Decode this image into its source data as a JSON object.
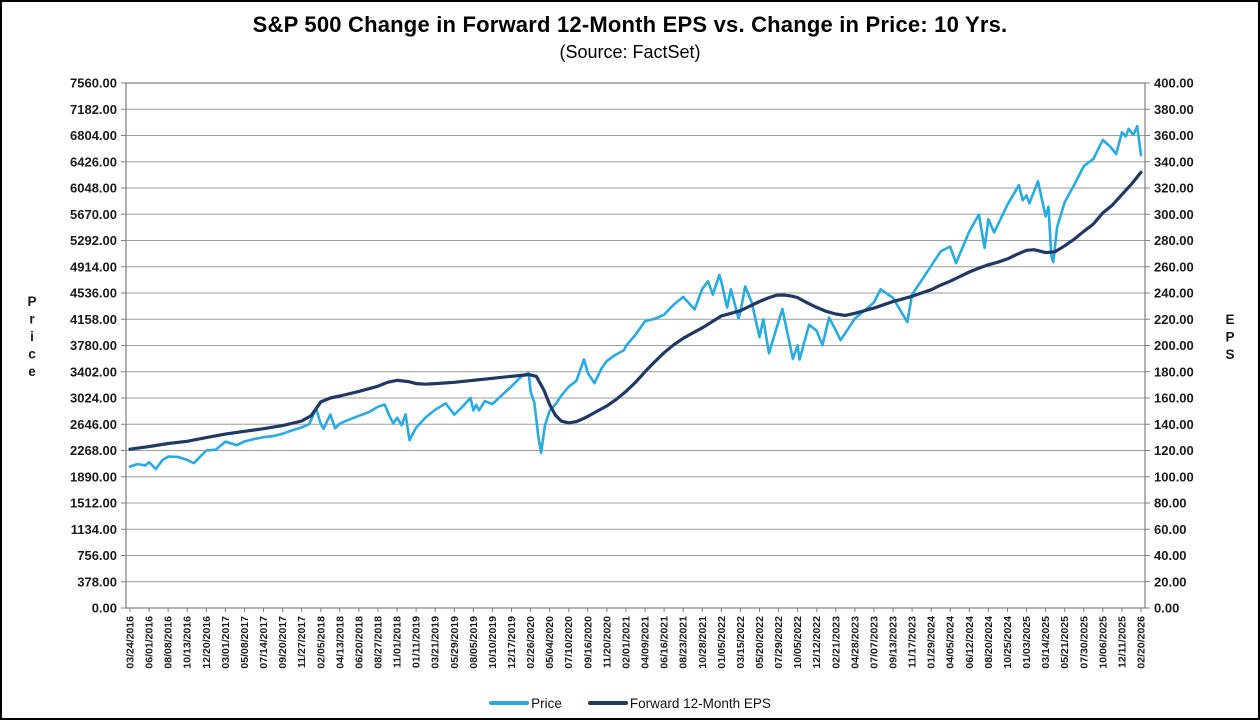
{
  "title": "S&P 500 Change in Forward 12-Month EPS vs. Change in Price: 10 Yrs.",
  "subtitle": "(Source: FactSet)",
  "legend": {
    "price_label": "Price",
    "eps_label": "Forward 12-Month EPS"
  },
  "colors": {
    "price": "#29ABE2",
    "eps": "#1F3864",
    "gridline": "#9E9E9E",
    "plot_border": "#808080",
    "axis_text": "#1A1A1A"
  },
  "chart_data": {
    "type": "line",
    "title": "S&P 500 Change in Forward 12-Month EPS vs. Change in Price: 10 Yrs.",
    "subtitle": "(Source: FactSet)",
    "grid": "horizontal-only",
    "legend_position": "bottom-center",
    "left_axis": {
      "title": "Price",
      "min": 0,
      "max": 7560,
      "tick_step": 378,
      "tick_labels": [
        "7560.00",
        "7182.00",
        "6804.00",
        "6426.00",
        "6048.00",
        "5670.00",
        "5292.00",
        "4914.00",
        "4536.00",
        "4158.00",
        "3780.00",
        "3402.00",
        "3024.00",
        "2646.00",
        "2268.00",
        "1890.00",
        "1512.00",
        "1134.00",
        "756.00",
        "378.00",
        "0.00"
      ]
    },
    "right_axis": {
      "title": "EPS",
      "min": 0,
      "max": 400,
      "tick_step": 20,
      "tick_labels": [
        "400.00",
        "380.00",
        "360.00",
        "340.00",
        "320.00",
        "300.00",
        "280.00",
        "260.00",
        "240.00",
        "220.00",
        "200.00",
        "180.00",
        "160.00",
        "140.00",
        "120.00",
        "100.00",
        "80.00",
        "60.00",
        "40.00",
        "20.00",
        "0.00"
      ]
    },
    "x_tick_labels": [
      "03/24/2016",
      "06/01/2016",
      "08/08/2016",
      "10/13/2016",
      "12/20/2016",
      "03/01/2017",
      "05/08/2017",
      "07/14/2017",
      "09/20/2017",
      "11/27/2017",
      "02/05/2018",
      "04/13/2018",
      "06/20/2018",
      "08/27/2018",
      "11/01/2018",
      "01/11/2019",
      "03/21/2019",
      "05/29/2019",
      "08/05/2019",
      "10/10/2019",
      "12/17/2019",
      "02/26/2020",
      "05/04/2020",
      "07/10/2020",
      "09/16/2020",
      "11/20/2020",
      "02/01/2021",
      "04/09/2021",
      "06/16/2021",
      "08/23/2021",
      "10/28/2021",
      "01/05/2022",
      "03/15/2022",
      "05/20/2022",
      "07/29/2022",
      "10/05/2022",
      "12/12/2022",
      "02/21/2023",
      "04/28/2023",
      "07/07/2023",
      "09/13/2023",
      "11/17/2023",
      "01/29/2024",
      "04/05/2024",
      "06/12/2024",
      "08/20/2024",
      "10/25/2024",
      "01/03/2025",
      "03/14/2025",
      "05/21/2025",
      "07/30/2025",
      "10/06/2025",
      "12/11/2025",
      "02/20/2026"
    ],
    "series": [
      {
        "name": "Price",
        "axis": "left",
        "color": "#29ABE2",
        "points": [
          [
            0,
            2036
          ],
          [
            0.4,
            2073
          ],
          [
            0.8,
            2052
          ],
          [
            1,
            2099
          ],
          [
            1.35,
            2001
          ],
          [
            1.7,
            2129
          ],
          [
            2,
            2181
          ],
          [
            2.5,
            2176
          ],
          [
            3,
            2133
          ],
          [
            3.35,
            2085
          ],
          [
            4,
            2270
          ],
          [
            4.5,
            2280
          ],
          [
            5,
            2396
          ],
          [
            5.6,
            2344
          ],
          [
            6,
            2399
          ],
          [
            6.5,
            2432
          ],
          [
            7,
            2459
          ],
          [
            7.5,
            2475
          ],
          [
            8,
            2508
          ],
          [
            8.5,
            2557
          ],
          [
            9,
            2601
          ],
          [
            9.4,
            2648
          ],
          [
            9.75,
            2873
          ],
          [
            10,
            2649
          ],
          [
            10.15,
            2581
          ],
          [
            10.5,
            2787
          ],
          [
            10.75,
            2588
          ],
          [
            11,
            2656
          ],
          [
            11.5,
            2713
          ],
          [
            12,
            2767
          ],
          [
            12.5,
            2816
          ],
          [
            13,
            2897
          ],
          [
            13.35,
            2931
          ],
          [
            13.6,
            2768
          ],
          [
            13.8,
            2658
          ],
          [
            14,
            2740
          ],
          [
            14.25,
            2633
          ],
          [
            14.45,
            2790
          ],
          [
            14.65,
            2416
          ],
          [
            15,
            2596
          ],
          [
            15.5,
            2745
          ],
          [
            16,
            2855
          ],
          [
            16.55,
            2946
          ],
          [
            17,
            2783
          ],
          [
            17.4,
            2890
          ],
          [
            17.85,
            3026
          ],
          [
            18,
            2845
          ],
          [
            18.15,
            2926
          ],
          [
            18.3,
            2847
          ],
          [
            18.6,
            2979
          ],
          [
            19,
            2938
          ],
          [
            19.5,
            3067
          ],
          [
            20,
            3192
          ],
          [
            20.5,
            3330
          ],
          [
            20.9,
            3386
          ],
          [
            21,
            3116
          ],
          [
            21.2,
            2954
          ],
          [
            21.4,
            2481
          ],
          [
            21.55,
            2237
          ],
          [
            21.75,
            2627
          ],
          [
            22,
            2843
          ],
          [
            22.3,
            2930
          ],
          [
            22.6,
            3055
          ],
          [
            23,
            3185
          ],
          [
            23.4,
            3272
          ],
          [
            23.8,
            3581
          ],
          [
            24,
            3385
          ],
          [
            24.35,
            3237
          ],
          [
            24.7,
            3443
          ],
          [
            25,
            3558
          ],
          [
            25.4,
            3638
          ],
          [
            25.9,
            3714
          ],
          [
            26,
            3774
          ],
          [
            26.5,
            3935
          ],
          [
            27,
            4129
          ],
          [
            27.5,
            4163
          ],
          [
            28,
            4224
          ],
          [
            28.5,
            4369
          ],
          [
            29,
            4480
          ],
          [
            29.6,
            4300
          ],
          [
            30,
            4596
          ],
          [
            30.3,
            4705
          ],
          [
            30.55,
            4513
          ],
          [
            30.9,
            4797
          ],
          [
            31,
            4701
          ],
          [
            31.3,
            4326
          ],
          [
            31.5,
            4589
          ],
          [
            31.9,
            4171
          ],
          [
            32,
            4262
          ],
          [
            32.25,
            4631
          ],
          [
            32.6,
            4392
          ],
          [
            33,
            3901
          ],
          [
            33.2,
            4158
          ],
          [
            33.5,
            3667
          ],
          [
            34,
            4130
          ],
          [
            34.2,
            4305
          ],
          [
            34.75,
            3586
          ],
          [
            35,
            3783
          ],
          [
            35.1,
            3577
          ],
          [
            35.6,
            4080
          ],
          [
            36,
            3991
          ],
          [
            36.3,
            3783
          ],
          [
            36.65,
            4180
          ],
          [
            37,
            3997
          ],
          [
            37.25,
            3856
          ],
          [
            38,
            4169
          ],
          [
            38.5,
            4282
          ],
          [
            39,
            4399
          ],
          [
            39.35,
            4589
          ],
          [
            40,
            4467
          ],
          [
            40.75,
            4117
          ],
          [
            41,
            4514
          ],
          [
            41.5,
            4719
          ],
          [
            42,
            4928
          ],
          [
            42.5,
            5137
          ],
          [
            43,
            5204
          ],
          [
            43.3,
            4967
          ],
          [
            44,
            5421
          ],
          [
            44.5,
            5667
          ],
          [
            44.8,
            5186
          ],
          [
            45,
            5597
          ],
          [
            45.3,
            5408
          ],
          [
            46,
            5808
          ],
          [
            46.6,
            6090
          ],
          [
            46.8,
            5872
          ],
          [
            47,
            5942
          ],
          [
            47.15,
            5827
          ],
          [
            47.6,
            6144
          ],
          [
            48,
            5639
          ],
          [
            48.15,
            5777
          ],
          [
            48.3,
            5074
          ],
          [
            48.4,
            4983
          ],
          [
            48.6,
            5485
          ],
          [
            49,
            5845
          ],
          [
            49.5,
            6092
          ],
          [
            50,
            6363
          ],
          [
            50.5,
            6466
          ],
          [
            51,
            6740
          ],
          [
            51.4,
            6640
          ],
          [
            51.7,
            6538
          ],
          [
            52,
            6850
          ],
          [
            52.2,
            6790
          ],
          [
            52.35,
            6900
          ],
          [
            52.6,
            6812
          ],
          [
            52.8,
            6940
          ],
          [
            53,
            6520
          ]
        ]
      },
      {
        "name": "Forward 12-Month EPS",
        "axis": "right",
        "color": "#1F3864",
        "points": [
          [
            0,
            121
          ],
          [
            1,
            123
          ],
          [
            2,
            125.3
          ],
          [
            3,
            127
          ],
          [
            4,
            129.8
          ],
          [
            5,
            132.5
          ],
          [
            6,
            134.6
          ],
          [
            7,
            136.6
          ],
          [
            8,
            139
          ],
          [
            9,
            142.5
          ],
          [
            9.5,
            146.5
          ],
          [
            10,
            157
          ],
          [
            10.5,
            160
          ],
          [
            11,
            161.5
          ],
          [
            12,
            165
          ],
          [
            13,
            169
          ],
          [
            13.5,
            172
          ],
          [
            14,
            173.5
          ],
          [
            14.6,
            172.5
          ],
          [
            15,
            171
          ],
          [
            15.5,
            170.5
          ],
          [
            16,
            171
          ],
          [
            17,
            172
          ],
          [
            18,
            173.5
          ],
          [
            19,
            175
          ],
          [
            20,
            176.5
          ],
          [
            20.9,
            177.8
          ],
          [
            21.3,
            176.5
          ],
          [
            21.7,
            166
          ],
          [
            22,
            155
          ],
          [
            22.3,
            147
          ],
          [
            22.6,
            142.5
          ],
          [
            23,
            141
          ],
          [
            23.4,
            142
          ],
          [
            23.8,
            144.5
          ],
          [
            24,
            146
          ],
          [
            24.5,
            150
          ],
          [
            25,
            154
          ],
          [
            25.5,
            159
          ],
          [
            26,
            165
          ],
          [
            26.5,
            172
          ],
          [
            27,
            180
          ],
          [
            27.5,
            187.5
          ],
          [
            28,
            194.5
          ],
          [
            28.5,
            200.5
          ],
          [
            29,
            205.5
          ],
          [
            29.5,
            209.5
          ],
          [
            30,
            213.5
          ],
          [
            30.5,
            218
          ],
          [
            31,
            222.5
          ],
          [
            31.5,
            224.5
          ],
          [
            32,
            226.5
          ],
          [
            32.5,
            230
          ],
          [
            33,
            233.5
          ],
          [
            33.5,
            236.5
          ],
          [
            33.9,
            238.3
          ],
          [
            34.3,
            238.4
          ],
          [
            34.7,
            237.6
          ],
          [
            35,
            236.5
          ],
          [
            35.5,
            232.5
          ],
          [
            36,
            229
          ],
          [
            36.5,
            226
          ],
          [
            37,
            224
          ],
          [
            37.5,
            222.9
          ],
          [
            38,
            224.5
          ],
          [
            38.5,
            226.5
          ],
          [
            39,
            228.5
          ],
          [
            39.5,
            231
          ],
          [
            40,
            233.5
          ],
          [
            40.5,
            235.5
          ],
          [
            41,
            237.5
          ],
          [
            41.5,
            240
          ],
          [
            42,
            242.5
          ],
          [
            42.5,
            246
          ],
          [
            43,
            249
          ],
          [
            43.5,
            252.5
          ],
          [
            44,
            256
          ],
          [
            44.5,
            259
          ],
          [
            45,
            261.5
          ],
          [
            45.5,
            263.5
          ],
          [
            46,
            266
          ],
          [
            46.5,
            269.5
          ],
          [
            47,
            272.5
          ],
          [
            47.4,
            273
          ],
          [
            48,
            270.8
          ],
          [
            48.5,
            271.5
          ],
          [
            49,
            276
          ],
          [
            49.5,
            281
          ],
          [
            50,
            287
          ],
          [
            50.5,
            292.5
          ],
          [
            51,
            301
          ],
          [
            51.5,
            307
          ],
          [
            52,
            315
          ],
          [
            52.5,
            323
          ],
          [
            53,
            332
          ]
        ]
      }
    ]
  }
}
